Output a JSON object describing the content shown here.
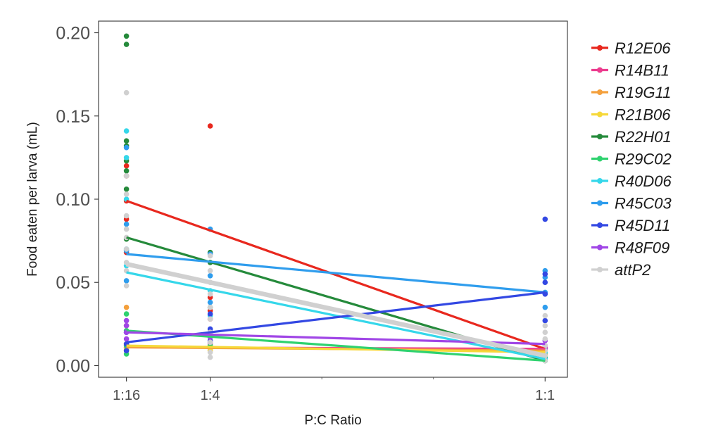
{
  "chart_data": {
    "type": "scatter",
    "xlabel": "P:C Ratio",
    "ylabel": "Food eaten per larva (mL)",
    "x_ticks": [
      {
        "label": "1:16",
        "value": 0.0625
      },
      {
        "label": "1:4",
        "value": 0.25
      },
      {
        "label": "1:1",
        "value": 1.0
      }
    ],
    "x_range": [
      0.0,
      1.05
    ],
    "y_ticks": [
      "0.00",
      "0.05",
      "0.10",
      "0.15",
      "0.20"
    ],
    "y_range": [
      -0.007,
      0.207
    ],
    "grid": false,
    "legend_position": "right",
    "series": [
      {
        "name": "R12E06",
        "color": "#e8281e",
        "fit": [
          [
            0.0625,
            0.099
          ],
          [
            1.0,
            0.01
          ]
        ],
        "points": [
          [
            0.0625,
            0.12
          ],
          [
            0.0625,
            0.114
          ],
          [
            0.0625,
            0.099
          ],
          [
            0.0625,
            0.088
          ],
          [
            0.0625,
            0.068
          ],
          [
            0.25,
            0.144
          ],
          [
            0.25,
            0.041
          ],
          [
            0.25,
            0.033
          ],
          [
            0.25,
            0.028
          ],
          [
            1.0,
            0.01
          ],
          [
            1.0,
            0.006
          ],
          [
            1.0,
            0.004
          ]
        ]
      },
      {
        "name": "R14B11",
        "color": "#ec3c8e",
        "fit": [
          [
            0.0625,
            0.011
          ],
          [
            1.0,
            0.01
          ]
        ],
        "points": [
          [
            0.0625,
            0.013
          ],
          [
            0.0625,
            0.011
          ],
          [
            0.0625,
            0.009
          ],
          [
            0.25,
            0.013
          ],
          [
            0.25,
            0.01
          ],
          [
            1.0,
            0.011
          ],
          [
            1.0,
            0.009
          ]
        ]
      },
      {
        "name": "R19G11",
        "color": "#f4a03c",
        "fit": [
          [
            0.0625,
            0.011
          ],
          [
            1.0,
            0.009
          ]
        ],
        "points": [
          [
            0.0625,
            0.035
          ],
          [
            0.0625,
            0.024
          ],
          [
            0.0625,
            0.012
          ],
          [
            0.25,
            0.012
          ],
          [
            0.25,
            0.009
          ],
          [
            1.0,
            0.009
          ],
          [
            1.0,
            0.007
          ]
        ]
      },
      {
        "name": "R21B06",
        "color": "#f6d839",
        "fit": [
          [
            0.0625,
            0.012
          ],
          [
            1.0,
            0.008
          ]
        ],
        "points": [
          [
            0.0625,
            0.013
          ],
          [
            0.0625,
            0.01
          ],
          [
            0.25,
            0.011
          ],
          [
            0.25,
            0.009
          ],
          [
            1.0,
            0.008
          ],
          [
            1.0,
            0.006
          ]
        ]
      },
      {
        "name": "R22H01",
        "color": "#258a3b",
        "fit": [
          [
            0.0625,
            0.077
          ],
          [
            1.0,
            0.003
          ]
        ],
        "points": [
          [
            0.0625,
            0.198
          ],
          [
            0.0625,
            0.193
          ],
          [
            0.0625,
            0.135
          ],
          [
            0.0625,
            0.132
          ],
          [
            0.0625,
            0.123
          ],
          [
            0.0625,
            0.117
          ],
          [
            0.0625,
            0.106
          ],
          [
            0.0625,
            0.076
          ],
          [
            0.25,
            0.068
          ],
          [
            0.25,
            0.062
          ],
          [
            0.25,
            0.035
          ],
          [
            1.0,
            0.005
          ],
          [
            1.0,
            0.003
          ]
        ]
      },
      {
        "name": "R29C02",
        "color": "#2fd26f",
        "fit": [
          [
            0.0625,
            0.021
          ],
          [
            1.0,
            0.003
          ]
        ],
        "points": [
          [
            0.0625,
            0.031
          ],
          [
            0.0625,
            0.021
          ],
          [
            0.0625,
            0.012
          ],
          [
            0.0625,
            0.007
          ],
          [
            0.25,
            0.018
          ],
          [
            0.25,
            0.012
          ],
          [
            1.0,
            0.006
          ],
          [
            1.0,
            0.003
          ]
        ]
      },
      {
        "name": "R40D06",
        "color": "#35d7ea",
        "fit": [
          [
            0.0625,
            0.056
          ],
          [
            1.0,
            0.004
          ]
        ],
        "points": [
          [
            0.0625,
            0.141
          ],
          [
            0.0625,
            0.125
          ],
          [
            0.0625,
            0.1
          ],
          [
            0.0625,
            0.07
          ],
          [
            0.0625,
            0.06
          ],
          [
            0.25,
            0.045
          ],
          [
            0.25,
            0.03
          ],
          [
            1.0,
            0.008
          ],
          [
            1.0,
            0.004
          ]
        ]
      },
      {
        "name": "R45C03",
        "color": "#2f9ded",
        "fit": [
          [
            0.0625,
            0.067
          ],
          [
            1.0,
            0.044
          ]
        ],
        "points": [
          [
            0.0625,
            0.131
          ],
          [
            0.0625,
            0.085
          ],
          [
            0.0625,
            0.069
          ],
          [
            0.0625,
            0.051
          ],
          [
            0.25,
            0.082
          ],
          [
            0.25,
            0.067
          ],
          [
            0.25,
            0.054
          ],
          [
            0.25,
            0.038
          ],
          [
            1.0,
            0.057
          ],
          [
            1.0,
            0.053
          ],
          [
            1.0,
            0.044
          ],
          [
            1.0,
            0.035
          ]
        ]
      },
      {
        "name": "R45D11",
        "color": "#3348e3",
        "fit": [
          [
            0.0625,
            0.014
          ],
          [
            1.0,
            0.044
          ]
        ],
        "points": [
          [
            0.0625,
            0.02
          ],
          [
            0.0625,
            0.013
          ],
          [
            0.0625,
            0.009
          ],
          [
            0.25,
            0.031
          ],
          [
            0.25,
            0.022
          ],
          [
            0.25,
            0.015
          ],
          [
            1.0,
            0.088
          ],
          [
            1.0,
            0.055
          ],
          [
            1.0,
            0.05
          ],
          [
            1.0,
            0.043
          ],
          [
            1.0,
            0.027
          ]
        ]
      },
      {
        "name": "R48F09",
        "color": "#a046e6",
        "fit": [
          [
            0.0625,
            0.02
          ],
          [
            1.0,
            0.013
          ]
        ],
        "points": [
          [
            0.0625,
            0.027
          ],
          [
            0.0625,
            0.024
          ],
          [
            0.0625,
            0.02
          ],
          [
            0.0625,
            0.016
          ],
          [
            0.25,
            0.02
          ],
          [
            0.25,
            0.017
          ],
          [
            0.25,
            0.014
          ],
          [
            1.0,
            0.015
          ],
          [
            1.0,
            0.012
          ],
          [
            1.0,
            0.01
          ]
        ]
      },
      {
        "name": "attP2",
        "color": "#d0d0d0",
        "fit": [
          [
            0.0625,
            0.061
          ],
          [
            1.0,
            0.006
          ]
        ],
        "points": [
          [
            0.0625,
            0.164
          ],
          [
            0.0625,
            0.114
          ],
          [
            0.0625,
            0.103
          ],
          [
            0.0625,
            0.09
          ],
          [
            0.0625,
            0.082
          ],
          [
            0.0625,
            0.077
          ],
          [
            0.0625,
            0.07
          ],
          [
            0.0625,
            0.062
          ],
          [
            0.0625,
            0.057
          ],
          [
            0.0625,
            0.048
          ],
          [
            0.25,
            0.066
          ],
          [
            0.25,
            0.057
          ],
          [
            0.25,
            0.05
          ],
          [
            0.25,
            0.043
          ],
          [
            0.25,
            0.035
          ],
          [
            0.25,
            0.028
          ],
          [
            0.25,
            0.02
          ],
          [
            0.25,
            0.014
          ],
          [
            0.25,
            0.008
          ],
          [
            0.25,
            0.005
          ],
          [
            1.0,
            0.03
          ],
          [
            1.0,
            0.024
          ],
          [
            1.0,
            0.02
          ],
          [
            1.0,
            0.016
          ],
          [
            1.0,
            0.012
          ],
          [
            1.0,
            0.009
          ],
          [
            1.0,
            0.006
          ],
          [
            1.0,
            0.003
          ]
        ]
      }
    ]
  }
}
